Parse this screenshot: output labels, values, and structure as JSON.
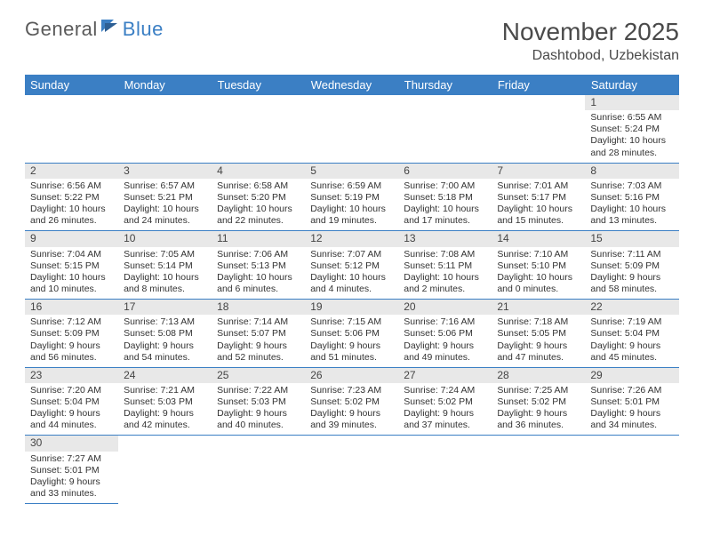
{
  "logo": {
    "text1": "General",
    "text2": "Blue"
  },
  "title": "November 2025",
  "location": "Dashtobod, Uzbekistan",
  "header_color": "#3b7fc4",
  "daynum_bg": "#e8e8e8",
  "weekdays": [
    "Sunday",
    "Monday",
    "Tuesday",
    "Wednesday",
    "Thursday",
    "Friday",
    "Saturday"
  ],
  "weeks": [
    [
      null,
      null,
      null,
      null,
      null,
      null,
      {
        "n": "1",
        "sr": "6:55 AM",
        "ss": "5:24 PM",
        "dl": "10 hours and 28 minutes."
      }
    ],
    [
      {
        "n": "2",
        "sr": "6:56 AM",
        "ss": "5:22 PM",
        "dl": "10 hours and 26 minutes."
      },
      {
        "n": "3",
        "sr": "6:57 AM",
        "ss": "5:21 PM",
        "dl": "10 hours and 24 minutes."
      },
      {
        "n": "4",
        "sr": "6:58 AM",
        "ss": "5:20 PM",
        "dl": "10 hours and 22 minutes."
      },
      {
        "n": "5",
        "sr": "6:59 AM",
        "ss": "5:19 PM",
        "dl": "10 hours and 19 minutes."
      },
      {
        "n": "6",
        "sr": "7:00 AM",
        "ss": "5:18 PM",
        "dl": "10 hours and 17 minutes."
      },
      {
        "n": "7",
        "sr": "7:01 AM",
        "ss": "5:17 PM",
        "dl": "10 hours and 15 minutes."
      },
      {
        "n": "8",
        "sr": "7:03 AM",
        "ss": "5:16 PM",
        "dl": "10 hours and 13 minutes."
      }
    ],
    [
      {
        "n": "9",
        "sr": "7:04 AM",
        "ss": "5:15 PM",
        "dl": "10 hours and 10 minutes."
      },
      {
        "n": "10",
        "sr": "7:05 AM",
        "ss": "5:14 PM",
        "dl": "10 hours and 8 minutes."
      },
      {
        "n": "11",
        "sr": "7:06 AM",
        "ss": "5:13 PM",
        "dl": "10 hours and 6 minutes."
      },
      {
        "n": "12",
        "sr": "7:07 AM",
        "ss": "5:12 PM",
        "dl": "10 hours and 4 minutes."
      },
      {
        "n": "13",
        "sr": "7:08 AM",
        "ss": "5:11 PM",
        "dl": "10 hours and 2 minutes."
      },
      {
        "n": "14",
        "sr": "7:10 AM",
        "ss": "5:10 PM",
        "dl": "10 hours and 0 minutes."
      },
      {
        "n": "15",
        "sr": "7:11 AM",
        "ss": "5:09 PM",
        "dl": "9 hours and 58 minutes."
      }
    ],
    [
      {
        "n": "16",
        "sr": "7:12 AM",
        "ss": "5:09 PM",
        "dl": "9 hours and 56 minutes."
      },
      {
        "n": "17",
        "sr": "7:13 AM",
        "ss": "5:08 PM",
        "dl": "9 hours and 54 minutes."
      },
      {
        "n": "18",
        "sr": "7:14 AM",
        "ss": "5:07 PM",
        "dl": "9 hours and 52 minutes."
      },
      {
        "n": "19",
        "sr": "7:15 AM",
        "ss": "5:06 PM",
        "dl": "9 hours and 51 minutes."
      },
      {
        "n": "20",
        "sr": "7:16 AM",
        "ss": "5:06 PM",
        "dl": "9 hours and 49 minutes."
      },
      {
        "n": "21",
        "sr": "7:18 AM",
        "ss": "5:05 PM",
        "dl": "9 hours and 47 minutes."
      },
      {
        "n": "22",
        "sr": "7:19 AM",
        "ss": "5:04 PM",
        "dl": "9 hours and 45 minutes."
      }
    ],
    [
      {
        "n": "23",
        "sr": "7:20 AM",
        "ss": "5:04 PM",
        "dl": "9 hours and 44 minutes."
      },
      {
        "n": "24",
        "sr": "7:21 AM",
        "ss": "5:03 PM",
        "dl": "9 hours and 42 minutes."
      },
      {
        "n": "25",
        "sr": "7:22 AM",
        "ss": "5:03 PM",
        "dl": "9 hours and 40 minutes."
      },
      {
        "n": "26",
        "sr": "7:23 AM",
        "ss": "5:02 PM",
        "dl": "9 hours and 39 minutes."
      },
      {
        "n": "27",
        "sr": "7:24 AM",
        "ss": "5:02 PM",
        "dl": "9 hours and 37 minutes."
      },
      {
        "n": "28",
        "sr": "7:25 AM",
        "ss": "5:02 PM",
        "dl": "9 hours and 36 minutes."
      },
      {
        "n": "29",
        "sr": "7:26 AM",
        "ss": "5:01 PM",
        "dl": "9 hours and 34 minutes."
      }
    ],
    [
      {
        "n": "30",
        "sr": "7:27 AM",
        "ss": "5:01 PM",
        "dl": "9 hours and 33 minutes."
      },
      null,
      null,
      null,
      null,
      null,
      null
    ]
  ],
  "labels": {
    "sunrise": "Sunrise:",
    "sunset": "Sunset:",
    "daylight": "Daylight:"
  }
}
